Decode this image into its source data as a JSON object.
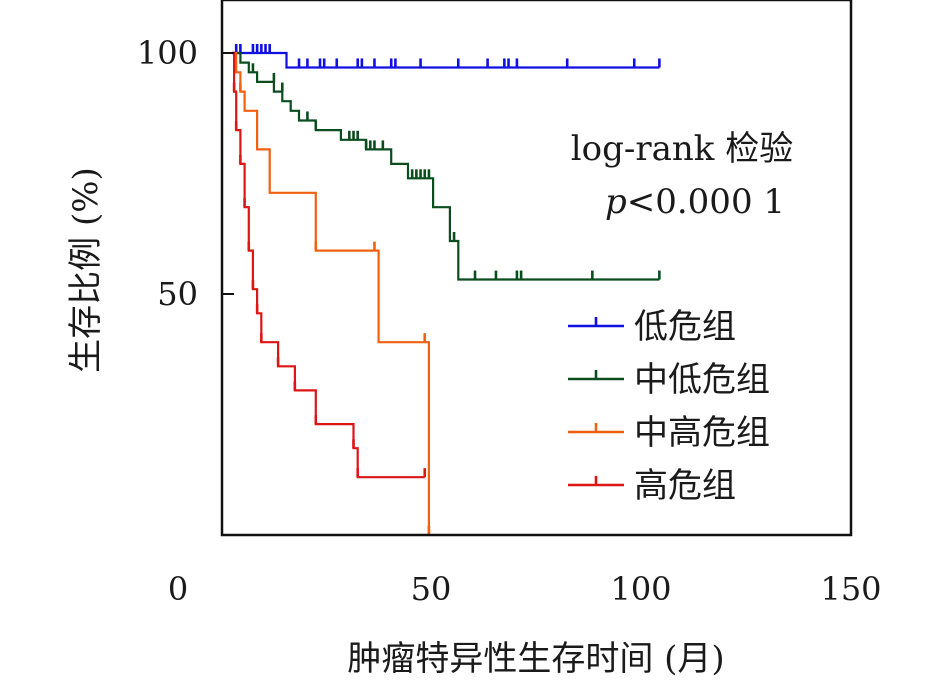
{
  "chart_data": {
    "type": "line",
    "subtype": "kaplan-meier step curves with censor ticks",
    "xlabel": "肿瘤特异性生存时间 (月)",
    "ylabel": "生存比例 (%)",
    "xlim": [
      0,
      150
    ],
    "ylim": [
      0,
      110
    ],
    "x_ticks": [
      0,
      50,
      100,
      150
    ],
    "y_ticks": [
      50,
      100
    ],
    "grid": false,
    "legend_position": "right",
    "annotation": {
      "line1": "log-rank 检验",
      "p_symbol": "p",
      "p_value": "<0.000 1"
    },
    "series": [
      {
        "name": "低危组",
        "color": "#1010e0",
        "steps": [
          [
            0,
            100
          ],
          [
            13,
            100
          ],
          [
            13,
            97
          ],
          [
            102,
            97
          ]
        ],
        "censors": [
          [
            1,
            100
          ],
          [
            2,
            100
          ],
          [
            5,
            100
          ],
          [
            6,
            100
          ],
          [
            7,
            100
          ],
          [
            8,
            100
          ],
          [
            9,
            100
          ],
          [
            16,
            97
          ],
          [
            18,
            97
          ],
          [
            21,
            97
          ],
          [
            22,
            97
          ],
          [
            25,
            97
          ],
          [
            30,
            97
          ],
          [
            31,
            97
          ],
          [
            34,
            97
          ],
          [
            38,
            97
          ],
          [
            39,
            97
          ],
          [
            45,
            97
          ],
          [
            54,
            97
          ],
          [
            61,
            97
          ],
          [
            65,
            97
          ],
          [
            66,
            97
          ],
          [
            68,
            97
          ],
          [
            80,
            97
          ],
          [
            96,
            97
          ],
          [
            102,
            97
          ]
        ]
      },
      {
        "name": "中低危组",
        "color": "#0b4d1e",
        "steps": [
          [
            0,
            100
          ],
          [
            2,
            100
          ],
          [
            2,
            98
          ],
          [
            4,
            98
          ],
          [
            4,
            96
          ],
          [
            6,
            96
          ],
          [
            6,
            94
          ],
          [
            10,
            94
          ],
          [
            10,
            92
          ],
          [
            12,
            92
          ],
          [
            12,
            90
          ],
          [
            14,
            90
          ],
          [
            14,
            88
          ],
          [
            16,
            88
          ],
          [
            16,
            86
          ],
          [
            20,
            86
          ],
          [
            20,
            84
          ],
          [
            26,
            84
          ],
          [
            26,
            82
          ],
          [
            32,
            82
          ],
          [
            32,
            80
          ],
          [
            38,
            80
          ],
          [
            38,
            77
          ],
          [
            42,
            77
          ],
          [
            42,
            74
          ],
          [
            48,
            74
          ],
          [
            48,
            68
          ],
          [
            52,
            68
          ],
          [
            52,
            61
          ],
          [
            54,
            61
          ],
          [
            54,
            53
          ],
          [
            102,
            53
          ]
        ],
        "censors": [
          [
            5,
            96
          ],
          [
            10,
            94
          ],
          [
            12,
            92
          ],
          [
            18,
            86
          ],
          [
            20,
            84
          ],
          [
            28,
            82
          ],
          [
            29,
            82
          ],
          [
            30,
            82
          ],
          [
            32,
            80
          ],
          [
            33,
            80
          ],
          [
            34,
            80
          ],
          [
            36,
            80
          ],
          [
            43,
            74
          ],
          [
            44,
            74
          ],
          [
            45,
            74
          ],
          [
            46,
            74
          ],
          [
            47,
            74
          ],
          [
            53,
            61
          ],
          [
            58,
            53
          ],
          [
            63,
            53
          ],
          [
            68,
            53
          ],
          [
            69,
            53
          ],
          [
            86,
            53
          ],
          [
            102,
            53
          ]
        ]
      },
      {
        "name": "中高危组",
        "color": "#f06010",
        "steps": [
          [
            0,
            100
          ],
          [
            1,
            100
          ],
          [
            1,
            96
          ],
          [
            2,
            96
          ],
          [
            2,
            92
          ],
          [
            3,
            92
          ],
          [
            3,
            88
          ],
          [
            6,
            88
          ],
          [
            6,
            80
          ],
          [
            9,
            80
          ],
          [
            9,
            71
          ],
          [
            20,
            71
          ],
          [
            20,
            59
          ],
          [
            35,
            59
          ],
          [
            35,
            40
          ],
          [
            47,
            40
          ],
          [
            47,
            0
          ]
        ],
        "censors": [
          [
            2,
            92
          ],
          [
            20,
            59
          ],
          [
            34,
            59
          ],
          [
            46,
            40
          ],
          [
            47,
            0
          ]
        ]
      },
      {
        "name": "高危组",
        "color": "#dd1515",
        "steps": [
          [
            0,
            100
          ],
          [
            0.5,
            100
          ],
          [
            0.5,
            92
          ],
          [
            1,
            92
          ],
          [
            1,
            84
          ],
          [
            2,
            84
          ],
          [
            2,
            77
          ],
          [
            3,
            77
          ],
          [
            3,
            68
          ],
          [
            4,
            68
          ],
          [
            4,
            59
          ],
          [
            5,
            59
          ],
          [
            5,
            51
          ],
          [
            6,
            51
          ],
          [
            6,
            46
          ],
          [
            7,
            46
          ],
          [
            7,
            40
          ],
          [
            11,
            40
          ],
          [
            11,
            35
          ],
          [
            15,
            35
          ],
          [
            15,
            30
          ],
          [
            20,
            30
          ],
          [
            20,
            23
          ],
          [
            29,
            23
          ],
          [
            29,
            18
          ],
          [
            30,
            18
          ],
          [
            30,
            12
          ],
          [
            46,
            12
          ]
        ],
        "censors": [
          [
            0.5,
            92
          ],
          [
            1,
            84
          ],
          [
            2,
            77
          ],
          [
            3,
            68
          ],
          [
            4,
            59
          ],
          [
            5,
            51
          ],
          [
            6,
            46
          ],
          [
            7,
            40
          ],
          [
            11,
            35
          ],
          [
            15,
            30
          ],
          [
            20,
            23
          ],
          [
            29,
            18
          ],
          [
            30,
            12
          ],
          [
            46,
            12
          ]
        ]
      }
    ]
  }
}
